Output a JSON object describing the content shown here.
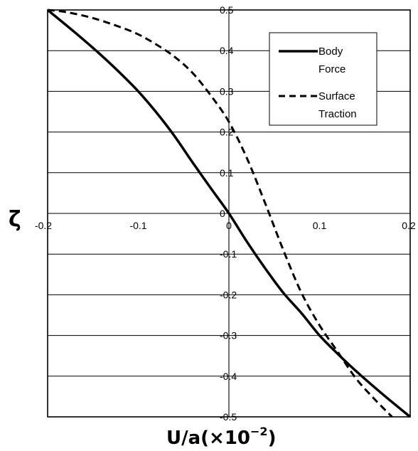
{
  "chart_data": {
    "type": "line",
    "xlabel": "U/a(×10",
    "xlabel_exponent": "−2",
    "xlabel_close": ")",
    "ylabel": "ζ",
    "xlim": [
      -0.2,
      0.2
    ],
    "ylim": [
      -0.5,
      0.5
    ],
    "x_ticks": [
      -0.2,
      -0.1,
      0,
      0.1,
      0.2
    ],
    "x_tick_labels": [
      "-0.2",
      "-0.1",
      "0",
      "0.1",
      "0.2"
    ],
    "y_ticks": [
      0.5,
      0.4,
      0.3,
      0.2,
      0.1,
      0,
      -0.1,
      -0.2,
      -0.3,
      -0.4,
      -0.5
    ],
    "y_tick_labels": [
      "0.5",
      "0.4",
      "0.3",
      "0.2",
      "0.1",
      "0",
      "-0.1",
      "-0.2",
      "-0.3",
      "-0.4",
      "-0.5"
    ],
    "grid": "horizontal",
    "legend_position": "top-right",
    "series": [
      {
        "name": "Body Force",
        "style": "solid",
        "color": "#000000",
        "points": [
          [
            -0.2,
            0.5
          ],
          [
            -0.17,
            0.445
          ],
          [
            -0.14,
            0.387
          ],
          [
            -0.12,
            0.345
          ],
          [
            -0.1,
            0.3
          ],
          [
            -0.08,
            0.248
          ],
          [
            -0.06,
            0.19
          ],
          [
            -0.04,
            0.125
          ],
          [
            -0.02,
            0.062
          ],
          [
            0,
            0
          ],
          [
            0.02,
            -0.07
          ],
          [
            0.04,
            -0.135
          ],
          [
            0.06,
            -0.195
          ],
          [
            0.08,
            -0.245
          ],
          [
            0.1,
            -0.3
          ],
          [
            0.12,
            -0.345
          ],
          [
            0.14,
            -0.387
          ],
          [
            0.17,
            -0.445
          ],
          [
            0.2,
            -0.5
          ]
        ]
      },
      {
        "name": "Surface Traction",
        "style": "dashed",
        "color": "#000000",
        "points": [
          [
            -0.2,
            0.5
          ],
          [
            -0.18,
            0.495
          ],
          [
            -0.15,
            0.48
          ],
          [
            -0.12,
            0.458
          ],
          [
            -0.1,
            0.44
          ],
          [
            -0.08,
            0.415
          ],
          [
            -0.06,
            0.385
          ],
          [
            -0.04,
            0.345
          ],
          [
            -0.02,
            0.29
          ],
          [
            0,
            0.225
          ],
          [
            0.02,
            0.135
          ],
          [
            0.04,
            0.025
          ],
          [
            0.06,
            -0.09
          ],
          [
            0.08,
            -0.195
          ],
          [
            0.1,
            -0.275
          ],
          [
            0.12,
            -0.34
          ],
          [
            0.14,
            -0.405
          ],
          [
            0.16,
            -0.455
          ],
          [
            0.18,
            -0.5
          ]
        ]
      }
    ]
  }
}
